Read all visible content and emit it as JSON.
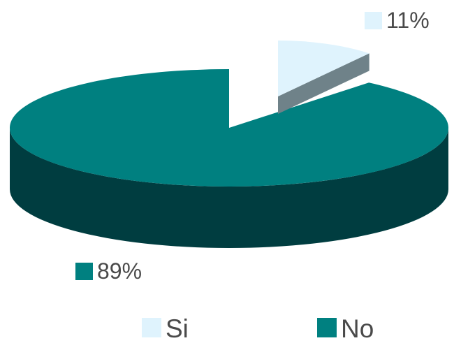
{
  "chart_data": {
    "type": "pie",
    "style": "3d",
    "series": [
      {
        "name": "Si",
        "value": 11,
        "label": "11%",
        "color": "#dff3fd",
        "side_color": "#6f8289"
      },
      {
        "name": "No",
        "value": 89,
        "label": "89%",
        "color": "#008080",
        "side_color": "#003d40"
      }
    ],
    "legend_position": "bottom"
  }
}
